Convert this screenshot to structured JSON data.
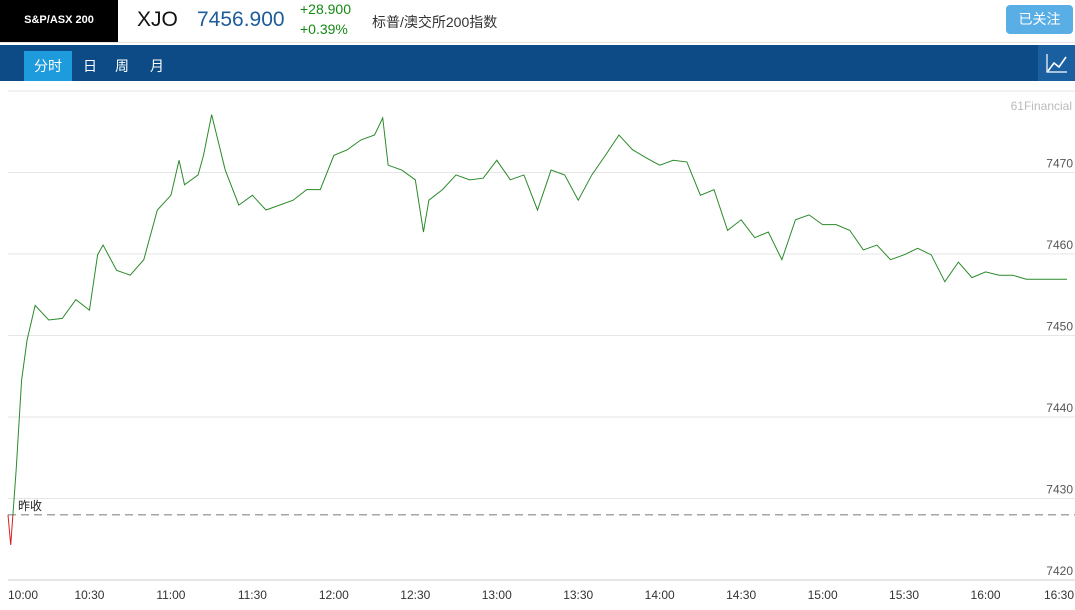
{
  "header": {
    "logo": "S&P/ASX 200",
    "symbol": "XJO",
    "price": "7456.900",
    "change": "+28.900",
    "change_pct": "+0.39%",
    "name": "标普/澳交所200指数",
    "button": "已关注"
  },
  "tabs": [
    "分时",
    "日",
    "周",
    "月"
  ],
  "chart_data": {
    "type": "line",
    "watermark": "61Financial",
    "reference": {
      "label": "昨收",
      "value": 7428.0
    },
    "x": [
      "10:00",
      "10:01",
      "10:03",
      "10:05",
      "10:07",
      "10:10",
      "10:15",
      "10:20",
      "10:25",
      "10:30",
      "10:33",
      "10:35",
      "10:40",
      "10:45",
      "10:50",
      "10:55",
      "11:00",
      "11:03",
      "11:05",
      "11:10",
      "11:12",
      "11:15",
      "11:20",
      "11:25",
      "11:30",
      "11:35",
      "11:40",
      "11:45",
      "11:50",
      "11:55",
      "12:00",
      "12:05",
      "12:10",
      "12:15",
      "12:18",
      "12:20",
      "12:25",
      "12:30",
      "12:33",
      "12:35",
      "12:40",
      "12:45",
      "12:50",
      "12:55",
      "13:00",
      "13:05",
      "13:10",
      "13:15",
      "13:20",
      "13:25",
      "13:30",
      "13:35",
      "13:40",
      "13:45",
      "13:50",
      "13:55",
      "14:00",
      "14:05",
      "14:10",
      "14:15",
      "14:20",
      "14:25",
      "14:30",
      "14:35",
      "14:40",
      "14:45",
      "14:50",
      "14:55",
      "15:00",
      "15:05",
      "15:10",
      "15:15",
      "15:20",
      "15:25",
      "15:30",
      "15:35",
      "15:40",
      "15:45",
      "15:50",
      "15:55",
      "16:00",
      "16:05",
      "16:10",
      "16:15",
      "16:30"
    ],
    "series": [
      {
        "name": "XJO",
        "up_color": "#2a8a2a",
        "down_color": "#d62020",
        "values": [
          7428.0,
          7424.3,
          7433.5,
          7444.5,
          7449.4,
          7453.7,
          7451.9,
          7452.1,
          7454.4,
          7453.1,
          7459.9,
          7461.1,
          7458.0,
          7457.4,
          7459.3,
          7465.4,
          7467.2,
          7471.5,
          7468.5,
          7469.7,
          7472.1,
          7477.1,
          7470.3,
          7466.0,
          7467.2,
          7465.4,
          7466.0,
          7466.6,
          7467.9,
          7467.9,
          7472.1,
          7472.8,
          7474.0,
          7474.6,
          7476.7,
          7470.9,
          7470.3,
          7469.1,
          7462.7,
          7466.6,
          7467.9,
          7469.7,
          7469.1,
          7469.3,
          7471.5,
          7469.1,
          7469.7,
          7465.4,
          7470.3,
          7469.7,
          7466.6,
          7469.7,
          7472.1,
          7474.6,
          7472.8,
          7471.8,
          7470.9,
          7471.5,
          7471.3,
          7467.2,
          7467.9,
          7462.9,
          7464.2,
          7462.0,
          7462.7,
          7459.3,
          7464.2,
          7464.8,
          7463.6,
          7463.6,
          7462.9,
          7460.5,
          7461.1,
          7459.3,
          7459.9,
          7460.7,
          7459.9,
          7456.6,
          7459.0,
          7457.1,
          7457.8,
          7457.4,
          7457.4,
          7456.9,
          7456.9
        ]
      }
    ],
    "xlim": [
      "10:00",
      "16:30"
    ],
    "xticks": [
      "10:00",
      "10:30",
      "11:00",
      "11:30",
      "12:00",
      "12:30",
      "13:00",
      "13:30",
      "14:00",
      "14:30",
      "15:00",
      "15:30",
      "16:00",
      "16:30"
    ],
    "ylim": [
      7420,
      7480
    ],
    "yticks": [
      7420,
      7430,
      7440,
      7450,
      7460,
      7470
    ],
    "grid": true
  }
}
